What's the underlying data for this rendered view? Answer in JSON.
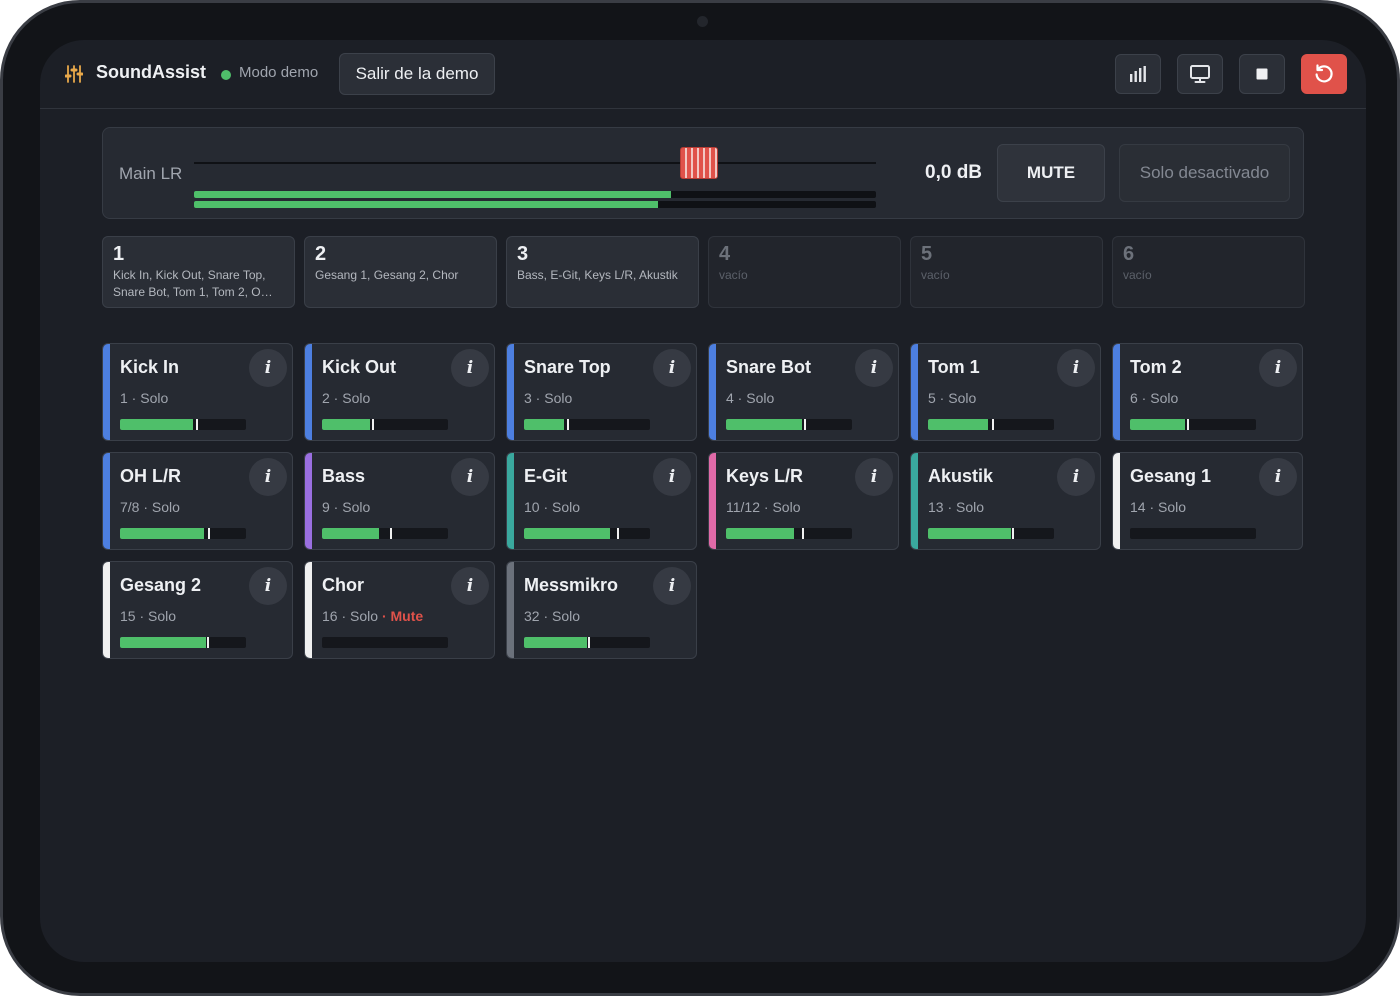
{
  "header": {
    "app_title": "SoundAssist",
    "demo_label": "Modo demo",
    "exit_demo_label": "Salir de la demo",
    "icons": [
      "bar-chart-icon",
      "monitor-icon",
      "stop-icon",
      "reset-icon"
    ],
    "colors": {
      "accent_green": "#4fbf6a",
      "danger": "#e0524a"
    }
  },
  "main_lr": {
    "label": "Main LR",
    "db_value": "0,0 dB",
    "mute_label": "MUTE",
    "solo_label": "Solo desactivado",
    "fader_level": 0.74,
    "meter_left": 0.7,
    "meter_right": 0.68
  },
  "groups": [
    {
      "number": "1",
      "members": "Kick In, Kick Out, Snare Top, Snare Bot, Tom 1, Tom 2, O…",
      "empty": false
    },
    {
      "number": "2",
      "members": "Gesang 1, Gesang 2, Chor",
      "empty": false
    },
    {
      "number": "3",
      "members": "Bass, E-Git, Keys L/R, Akustik",
      "empty": false
    },
    {
      "number": "4",
      "members": "vacío",
      "empty": true
    },
    {
      "number": "5",
      "members": "vacío",
      "empty": true
    },
    {
      "number": "6",
      "members": "vacío",
      "empty": true
    }
  ],
  "channels": [
    {
      "name": "Kick In",
      "number": "1",
      "sub": "Solo",
      "mute": "",
      "color": "#4d7fe0",
      "level": 0.58,
      "peak": 0.6
    },
    {
      "name": "Kick Out",
      "number": "2",
      "sub": "Solo",
      "mute": "",
      "color": "#4d7fe0",
      "level": 0.38,
      "peak": 0.4
    },
    {
      "name": "Snare Top",
      "number": "3",
      "sub": "Solo",
      "mute": "",
      "color": "#4d7fe0",
      "level": 0.32,
      "peak": 0.34
    },
    {
      "name": "Snare Bot",
      "number": "4",
      "sub": "Solo",
      "mute": "",
      "color": "#4d7fe0",
      "level": 0.6,
      "peak": 0.62
    },
    {
      "name": "Tom 1",
      "number": "5",
      "sub": "Solo",
      "mute": "",
      "color": "#4d7fe0",
      "level": 0.48,
      "peak": 0.51
    },
    {
      "name": "Tom 2",
      "number": "6",
      "sub": "Solo",
      "mute": "",
      "color": "#4d7fe0",
      "level": 0.44,
      "peak": 0.45
    },
    {
      "name": "OH L/R",
      "number": "7/8",
      "sub": "Solo",
      "mute": "",
      "color": "#4d7fe0",
      "level": 0.67,
      "peak": 0.7
    },
    {
      "name": "Bass",
      "number": "9",
      "sub": "Solo",
      "mute": "",
      "color": "#9a6fe0",
      "level": 0.45,
      "peak": 0.54
    },
    {
      "name": "E-Git",
      "number": "10",
      "sub": "Solo",
      "mute": "",
      "color": "#3aa89e",
      "level": 0.68,
      "peak": 0.74
    },
    {
      "name": "Keys L/R",
      "number": "11/12",
      "sub": "Solo",
      "mute": "",
      "color": "#e06aa8",
      "level": 0.54,
      "peak": 0.6
    },
    {
      "name": "Akustik",
      "number": "13",
      "sub": "Solo",
      "mute": "",
      "color": "#3aa89e",
      "level": 0.66,
      "peak": 0.67
    },
    {
      "name": "Gesang 1",
      "number": "14",
      "sub": "Solo",
      "mute": "",
      "color": "#f0f0f0",
      "level": 0.0,
      "peak": -1
    },
    {
      "name": "Gesang 2",
      "number": "15",
      "sub": "Solo",
      "mute": "",
      "color": "#f0f0f0",
      "level": 0.68,
      "peak": 0.69
    },
    {
      "name": "Chor",
      "number": "16",
      "sub": "Solo",
      "mute": "Mute",
      "color": "#f0f0f0",
      "level": 0.0,
      "peak": -1
    },
    {
      "name": "Messmikro",
      "number": "32",
      "sub": "Solo",
      "mute": "",
      "color": "#6b717b",
      "level": 0.5,
      "peak": 0.51
    }
  ]
}
